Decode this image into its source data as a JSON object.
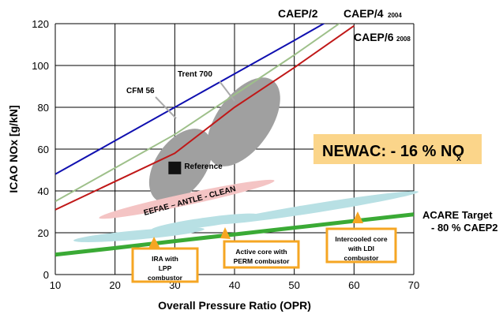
{
  "chart_data": {
    "type": "line",
    "xlabel": "Overall Pressure Ratio (OPR)",
    "ylabel": "ICAO NOx [g/kN]",
    "xlim": [
      10,
      70
    ],
    "ylim": [
      0,
      120
    ],
    "x_ticks": [
      10,
      20,
      30,
      40,
      50,
      60,
      70
    ],
    "y_ticks": [
      0,
      20,
      40,
      60,
      80,
      100,
      120
    ],
    "grid": true,
    "series": [
      {
        "name": "CAEP/2",
        "color": "#1010b0",
        "x": [
          10,
          20,
          30,
          40,
          50,
          58
        ],
        "y": [
          48,
          64,
          80,
          96,
          112,
          125
        ]
      },
      {
        "name": "CAEP/4",
        "suffix": "2004",
        "color": "#9ec08a",
        "x": [
          10,
          20,
          30,
          40,
          50,
          60
        ],
        "y": [
          35,
          51,
          67,
          86,
          105,
          125
        ]
      },
      {
        "name": "CAEP/6",
        "suffix": "2008",
        "color": "#c01818",
        "x": [
          10,
          20,
          30,
          40,
          50,
          60
        ],
        "y": [
          31,
          44.5,
          58,
          80,
          99,
          119
        ]
      },
      {
        "name": "ACARE Target",
        "suffix": "- 80 % CAEP2",
        "color": "#3aaa35",
        "x": [
          10,
          20,
          30,
          40,
          50,
          60,
          70
        ],
        "y": [
          9.5,
          12.7,
          16,
          19.2,
          22.4,
          25.6,
          28.8
        ]
      }
    ],
    "regions": [
      {
        "label": "CFM 56",
        "color": "#a0a0a0",
        "cx": 31,
        "cy": 52,
        "rx": 7,
        "ry": 12,
        "angle": -55
      },
      {
        "label": "Trent 700",
        "color": "#a0a0a0",
        "cx": 41.5,
        "cy": 73,
        "rx": 8.5,
        "ry": 13,
        "angle": -55
      },
      {
        "label": "EEFAE – ANTLE - CLEAN",
        "color": "#f4c4c4",
        "cx": 32,
        "cy": 36,
        "rx": 15,
        "ry": 2.8,
        "angle": -12
      },
      {
        "label": "IRA with LPP combustor",
        "color": "#b8e0e4",
        "cx": 24,
        "cy": 19,
        "rx": 11,
        "ry": 2.2,
        "angle": -5
      },
      {
        "label": "Active core with PERM combustor",
        "color": "#b8e0e4",
        "cx": 35,
        "cy": 25,
        "rx": 9,
        "ry": 2.2,
        "angle": -8
      },
      {
        "label": "Intercooled core with LDI combustor",
        "color": "#b8e0e4",
        "cx": 54,
        "cy": 32,
        "rx": 17,
        "ry": 2.2,
        "angle": -9
      }
    ],
    "reference_point": {
      "label": "Reference",
      "x": 30,
      "y": 51
    },
    "annotations": {
      "newac": "NEWAC: - 16 % NO",
      "newac_sub": "x",
      "ira": [
        "IRA with",
        "LPP",
        "combustor"
      ],
      "perm": [
        "Active core with",
        "PERM combustor"
      ],
      "ldi": [
        "Intercooled core",
        "with LDI",
        "combustor"
      ],
      "cfm": "CFM 56",
      "trent": "Trent 700",
      "eefae": "EEFAE – ANTLE - CLEAN"
    },
    "colors": {
      "callout_border": "#f5a623",
      "newac_bg": "#fbd58a",
      "acare": "#3aaa35"
    }
  }
}
